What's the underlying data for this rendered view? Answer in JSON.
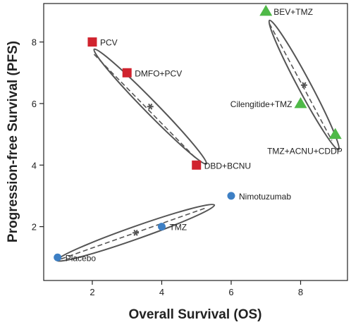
{
  "chart_data": {
    "type": "scatter",
    "title": "",
    "xlabel": "Overall Survival (OS)",
    "ylabel": "Progression-free Survival (PFS)",
    "xlim": [
      0.6,
      9.35
    ],
    "ylim": [
      0.25,
      9.25
    ],
    "xticks": [
      2,
      4,
      6,
      8
    ],
    "yticks": [
      2,
      4,
      6,
      8
    ],
    "grid": false,
    "legend": "none",
    "colors": {
      "red_square": "#d0232e",
      "blue_circle": "#3d7fc4",
      "green_triangle": "#4fb948",
      "ellipse": "#555555"
    },
    "points": [
      {
        "label": "PCV",
        "x": 2,
        "y": 8,
        "marker": "square",
        "color": "#d0232e",
        "label_pos": "right"
      },
      {
        "label": "DMFO+PCV",
        "x": 3,
        "y": 7,
        "marker": "square",
        "color": "#d0232e",
        "label_pos": "right"
      },
      {
        "label": "DBD+BCNU",
        "x": 5,
        "y": 4,
        "marker": "square",
        "color": "#d0232e",
        "label_pos": "right"
      },
      {
        "label": "BEV+TMZ",
        "x": 7,
        "y": 9,
        "marker": "triangle",
        "color": "#4fb948",
        "label_pos": "right"
      },
      {
        "label": "Cilengitide+TMZ",
        "x": 8,
        "y": 6,
        "marker": "triangle",
        "color": "#4fb948",
        "label_pos": "left"
      },
      {
        "label": "TMZ+ACNU+CDDP",
        "x": 9,
        "y": 5,
        "marker": "triangle",
        "color": "#4fb948",
        "label_pos": "below-left"
      },
      {
        "label": "Nimotuzumab",
        "x": 6,
        "y": 3,
        "marker": "circle",
        "color": "#3d7fc4",
        "label_pos": "right"
      },
      {
        "label": "TMZ",
        "x": 4,
        "y": 2,
        "marker": "circle",
        "color": "#3d7fc4",
        "label_pos": "right"
      },
      {
        "label": "Placebo",
        "x": 1,
        "y": 1,
        "marker": "circle",
        "color": "#3d7fc4",
        "label_pos": "right"
      }
    ],
    "clusters": [
      {
        "center": [
          3.67,
          5.9
        ],
        "fit_from": [
          2.05,
          7.6
        ],
        "fit_to": [
          5.0,
          4.2
        ]
      },
      {
        "center": [
          8.1,
          6.6
        ],
        "fit_from": [
          7.1,
          8.6
        ],
        "fit_to": [
          8.9,
          4.8
        ]
      },
      {
        "center": [
          3.25,
          1.8
        ],
        "fit_from": [
          1.1,
          0.95
        ],
        "fit_to": [
          5.25,
          2.6
        ]
      }
    ]
  }
}
